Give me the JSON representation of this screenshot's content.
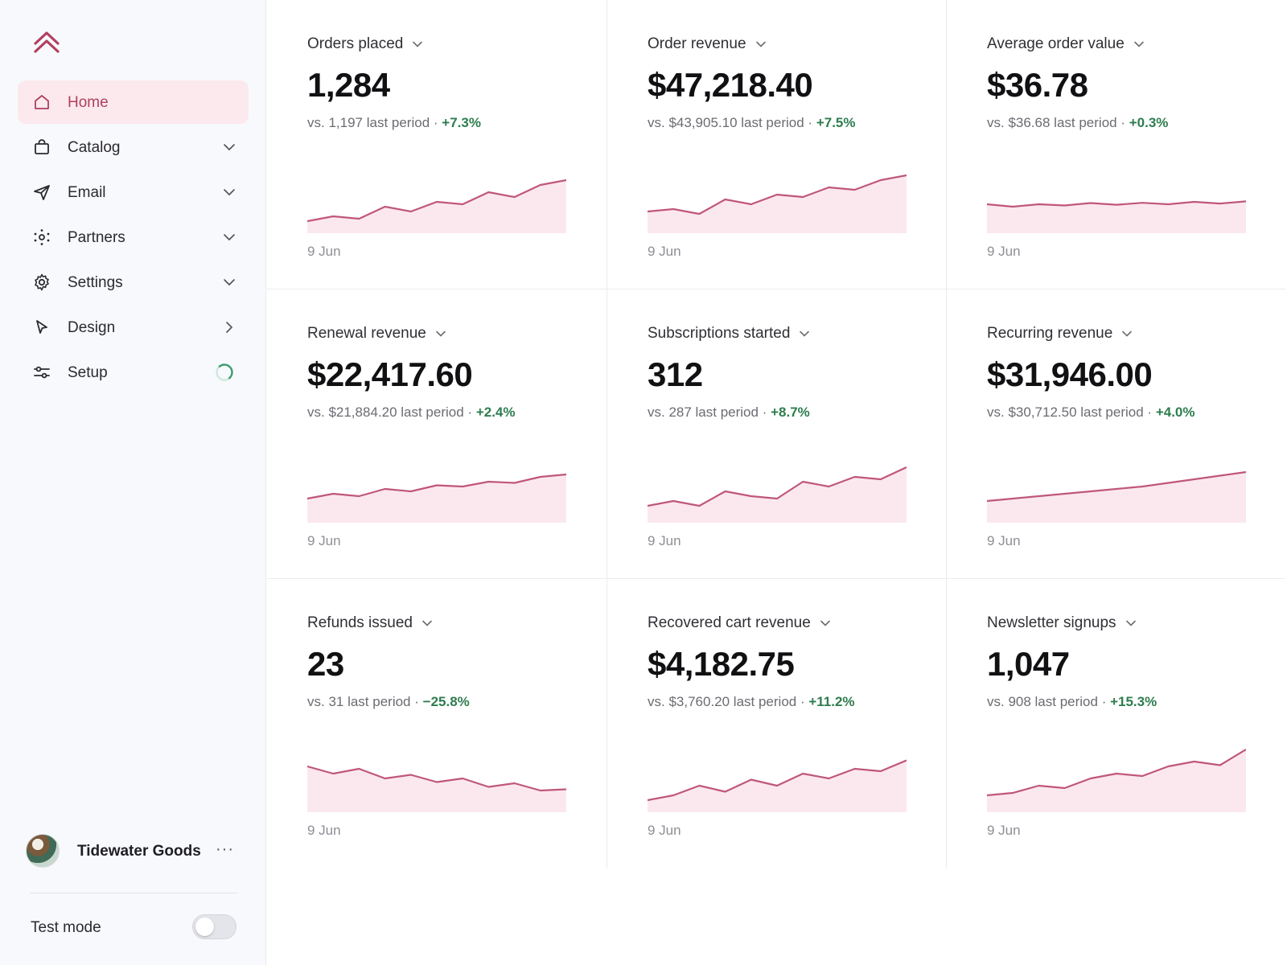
{
  "colors": {
    "accent": "#b0405f",
    "active_bg": "#fbe9ee",
    "spark_line": "#c0577a",
    "spark_fill": "#fbe8ee",
    "positive": "#2e7d4f"
  },
  "sidebar": {
    "items": [
      {
        "label": "Home",
        "icon": "home-icon",
        "active": true
      },
      {
        "label": "Catalog",
        "icon": "shopping-bag-icon",
        "chevron": "down"
      },
      {
        "label": "Email",
        "icon": "paper-plane-icon",
        "chevron": "down"
      },
      {
        "label": "Partners",
        "icon": "partners-icon",
        "chevron": "down"
      },
      {
        "label": "Settings",
        "icon": "gear-icon",
        "chevron": "down"
      },
      {
        "label": "Design",
        "icon": "cursor-icon",
        "chevron": "right"
      },
      {
        "label": "Setup",
        "icon": "sliders-icon",
        "progress": "spinner"
      }
    ],
    "store_name": "Tidewater Goods",
    "store_more": "···",
    "test_mode_label": "Test mode",
    "test_mode_on": false
  },
  "cards": [
    {
      "title": "Orders placed",
      "value": "1,284",
      "compare_text": "vs. 1,197 last period ·",
      "change": "+7.3%",
      "date": "9 Jun",
      "spark": [
        5,
        7,
        6,
        11,
        9,
        13,
        12,
        17,
        15,
        20,
        22
      ]
    },
    {
      "title": "Order revenue",
      "value": "$47,218.40",
      "compare_text": "vs. $43,905.10 last period ·",
      "change": "+7.5%",
      "date": "9 Jun",
      "spark": [
        9,
        10,
        8,
        14,
        12,
        16,
        15,
        19,
        18,
        22,
        24
      ]
    },
    {
      "title": "Average order value",
      "value": "$36.78",
      "compare_text": "vs. $36.68 last period ·",
      "change": "+0.3%",
      "date": "9 Jun",
      "spark": [
        12,
        11,
        12,
        11.5,
        12.5,
        11.8,
        12.6,
        12,
        13,
        12.3,
        13.2
      ]
    },
    {
      "title": "Renewal revenue",
      "value": "$22,417.60",
      "compare_text": "vs. $21,884.20 last period ·",
      "change": "+2.4%",
      "date": "9 Jun",
      "spark": [
        10,
        12,
        11,
        14,
        13,
        15.5,
        15,
        17,
        16.5,
        19,
        20
      ]
    },
    {
      "title": "Subscriptions started",
      "value": "312",
      "compare_text": "vs. 287 last period ·",
      "change": "+8.7%",
      "date": "9 Jun",
      "spark": [
        7,
        9,
        7,
        13,
        11,
        10,
        17,
        15,
        19,
        18,
        23
      ]
    },
    {
      "title": "Recurring revenue",
      "value": "$31,946.00",
      "compare_text": "vs. $30,712.50 last period ·",
      "change": "+4.0%",
      "date": "9 Jun",
      "spark": [
        9,
        10,
        11,
        12,
        13,
        14,
        15,
        16.5,
        18,
        19.5,
        21
      ]
    },
    {
      "title": "Refunds issued",
      "value": "23",
      "compare_text": "vs. 31 last period ·",
      "change": "−25.8%",
      "date": "9 Jun",
      "spark": [
        19,
        16,
        18,
        14,
        15.5,
        12.5,
        14,
        10.5,
        12,
        9,
        9.5
      ]
    },
    {
      "title": "Recovered cart revenue",
      "value": "$4,182.75",
      "compare_text": "vs. $3,760.20 last period ·",
      "change": "+11.2%",
      "date": "9 Jun",
      "spark": [
        5,
        7,
        11,
        8.5,
        13.5,
        11,
        16,
        14,
        18,
        17,
        21.5
      ]
    },
    {
      "title": "Newsletter signups",
      "value": "1,047",
      "compare_text": "vs. 908 last period ·",
      "change": "+15.3%",
      "date": "9 Jun",
      "spark": [
        7,
        8,
        11,
        10,
        14,
        16,
        15,
        19,
        21,
        19.5,
        26
      ]
    }
  ]
}
